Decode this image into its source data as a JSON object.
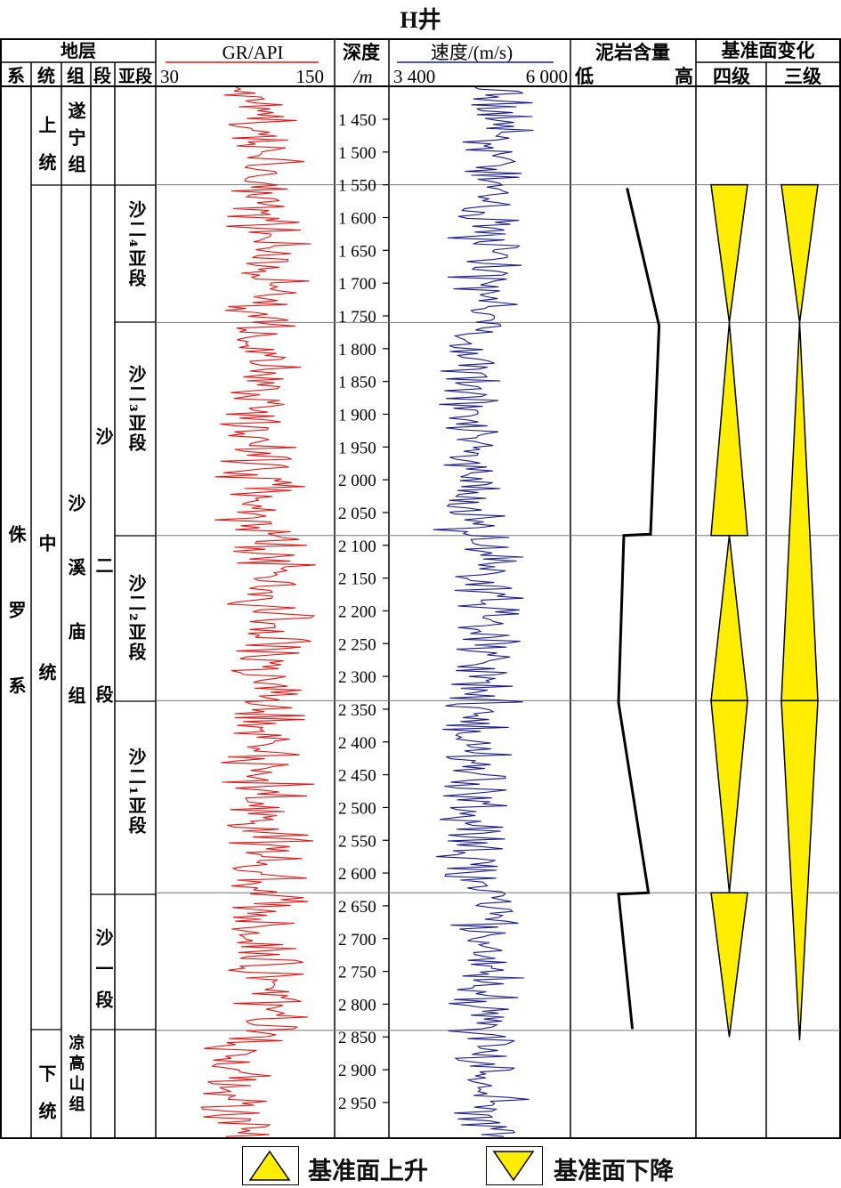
{
  "title": "H井",
  "headers": {
    "strata": "地层",
    "system": "系",
    "series": "统",
    "formation": "组",
    "member": "段",
    "submember": "亚段",
    "gr_title": "GR/API",
    "gr_min": "30",
    "gr_max": "150",
    "depth_title": "深度",
    "depth_unit": "/m",
    "vel_title": "速度/(m/s)",
    "vel_min": "3 400",
    "vel_max": "6 000",
    "mud_title": "泥岩含量",
    "mud_low": "低",
    "mud_high": "高",
    "base_title": "基准面变化",
    "base_fourth": "四级",
    "base_third": "三级"
  },
  "strata": {
    "system": "侏罗系",
    "series_upper": "上统",
    "series_middle": "中统",
    "series_lower": "下统",
    "formation_suining": "遂宁组",
    "formation_shaximiao": "沙溪庙组",
    "formation_lianggaoshan": "凉高山组",
    "member_sha2": "沙二段",
    "member_sha1": "沙一段",
    "sub_sha2_4": "沙二₄亚段",
    "sub_sha2_3": "沙二₃亚段",
    "sub_sha2_2": "沙二₂亚段",
    "sub_sha2_1": "沙二₁亚段"
  },
  "depth_axis": {
    "ticks": [
      1450,
      1500,
      1550,
      1600,
      1650,
      1700,
      1750,
      1800,
      1850,
      1900,
      1950,
      2000,
      2050,
      2100,
      2150,
      2200,
      2250,
      2300,
      2350,
      2400,
      2450,
      2500,
      2550,
      2600,
      2650,
      2700,
      2750,
      2800,
      2850,
      2900,
      2950
    ],
    "tick_labels": [
      "1 450",
      "1 500",
      "1 550",
      "1 600",
      "1 650",
      "1 700",
      "1 750",
      "1 800",
      "1 850",
      "1 900",
      "1 950",
      "2 000",
      "2 050",
      "2 100",
      "2 150",
      "2 200",
      "2 250",
      "2 300",
      "2 350",
      "2 400",
      "2 450",
      "2 500",
      "2 550",
      "2 600",
      "2 650",
      "2 700",
      "2 750",
      "2 800",
      "2 850",
      "2 900",
      "2 950"
    ],
    "range": [
      1395,
      3000
    ]
  },
  "boundaries_depth": [
    1550,
    1760,
    2085,
    2337,
    2630,
    2840
  ],
  "mudstone_content": {
    "points": [
      [
        0.08,
        1555
      ],
      [
        0.38,
        1765
      ],
      [
        0.3,
        2083
      ],
      [
        0.05,
        2085
      ],
      [
        0.0,
        2340
      ],
      [
        0.28,
        2630
      ],
      [
        0.0,
        2632
      ],
      [
        0.13,
        2838
      ]
    ]
  },
  "baselevel_fourth": {
    "triangles": [
      {
        "type": "falling",
        "top": 1550,
        "bottom": 1760
      },
      {
        "type": "rising",
        "top": 1760,
        "bottom": 2085
      },
      {
        "type": "rising",
        "top": 2085,
        "bottom": 2337
      },
      {
        "type": "falling",
        "top": 2337,
        "bottom": 2630
      },
      {
        "type": "falling",
        "top": 2630,
        "bottom": 2850
      }
    ]
  },
  "baselevel_third": {
    "triangles": [
      {
        "type": "falling",
        "top": 1550,
        "bottom": 1760
      },
      {
        "type": "rising",
        "top": 1760,
        "bottom": 2337
      },
      {
        "type": "falling",
        "top": 2337,
        "bottom": 2855
      }
    ]
  },
  "legend": {
    "rising": "基准面上升",
    "falling": "基准面下降"
  },
  "colors": {
    "gr_curve": "#e01515",
    "vel_curve": "#1a1a8c",
    "triangle_fill": "#ffee00",
    "grid": "#000000"
  }
}
